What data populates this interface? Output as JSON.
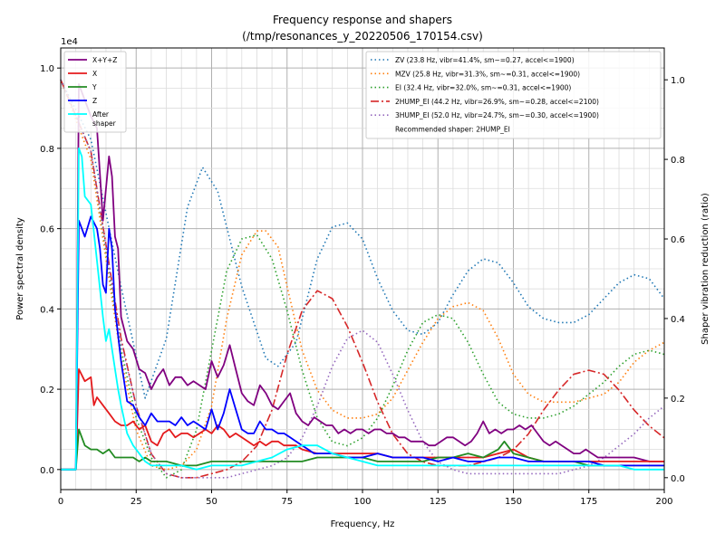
{
  "chart_data": {
    "type": "line",
    "title_line1": "Frequency response and shapers",
    "title_line2": "(/tmp/resonances_y_20220506_170154.csv)",
    "xlabel": "Frequency, Hz",
    "ylabel": "Power spectral density",
    "y2label": "Shaper vibration reduction (ratio)",
    "y_offset_text": "1e4",
    "xlim": [
      0,
      200
    ],
    "ylim": [
      -0.05,
      1.05
    ],
    "y2lim": [
      -0.03,
      1.08
    ],
    "x_ticks": [
      "0",
      "25",
      "50",
      "75",
      "100",
      "125",
      "150",
      "175",
      "200"
    ],
    "x_tick_values": [
      0,
      25,
      50,
      75,
      100,
      125,
      150,
      175,
      200
    ],
    "y_ticks": [
      "0.0",
      "0.2",
      "0.4",
      "0.6",
      "0.8",
      "1.0"
    ],
    "y_tick_values": [
      0,
      0.2,
      0.4,
      0.6,
      0.8,
      1.0
    ],
    "y2_ticks": [
      "0.0",
      "0.2",
      "0.4",
      "0.6",
      "0.8",
      "1.0"
    ],
    "y2_tick_values": [
      0,
      0.2,
      0.4,
      0.6,
      0.8,
      1.0
    ],
    "grid": true,
    "psd_legend_position": "upper-left",
    "shaper_legend_position": "upper-right",
    "recommended_text": "Recommended shaper: 2HUMP_EI",
    "psd_series": [
      {
        "name": "X+Y+Z",
        "color": "#800080",
        "dash": "solid",
        "x": [
          0,
          5,
          6,
          8,
          10,
          12,
          14,
          16,
          17,
          18,
          19,
          20,
          22,
          24,
          26,
          28,
          30,
          32,
          34,
          36,
          38,
          40,
          42,
          44,
          46,
          48,
          50,
          52,
          54,
          56,
          58,
          60,
          62,
          64,
          66,
          68,
          70,
          72,
          74,
          76,
          78,
          80,
          82,
          84,
          86,
          88,
          90,
          92,
          94,
          96,
          98,
          100,
          102,
          104,
          106,
          108,
          110,
          112,
          114,
          116,
          118,
          120,
          122,
          124,
          126,
          128,
          130,
          132,
          134,
          136,
          138,
          140,
          142,
          144,
          146,
          148,
          150,
          152,
          154,
          156,
          158,
          160,
          162,
          164,
          166,
          168,
          170,
          172,
          174,
          176,
          178,
          180,
          185,
          190,
          195,
          200
        ],
        "y": [
          0,
          0,
          0.96,
          0.92,
          0.88,
          0.85,
          0.62,
          0.78,
          0.73,
          0.58,
          0.55,
          0.38,
          0.32,
          0.3,
          0.25,
          0.24,
          0.2,
          0.23,
          0.25,
          0.21,
          0.23,
          0.23,
          0.21,
          0.22,
          0.21,
          0.2,
          0.27,
          0.23,
          0.26,
          0.31,
          0.25,
          0.19,
          0.17,
          0.16,
          0.21,
          0.19,
          0.16,
          0.15,
          0.17,
          0.19,
          0.14,
          0.12,
          0.11,
          0.13,
          0.12,
          0.11,
          0.11,
          0.09,
          0.1,
          0.09,
          0.1,
          0.1,
          0.09,
          0.1,
          0.1,
          0.09,
          0.09,
          0.08,
          0.08,
          0.07,
          0.07,
          0.07,
          0.06,
          0.06,
          0.07,
          0.08,
          0.08,
          0.07,
          0.06,
          0.07,
          0.09,
          0.12,
          0.09,
          0.1,
          0.09,
          0.1,
          0.1,
          0.11,
          0.1,
          0.11,
          0.09,
          0.07,
          0.06,
          0.07,
          0.06,
          0.05,
          0.04,
          0.04,
          0.05,
          0.04,
          0.03,
          0.03,
          0.03,
          0.03,
          0.02,
          0.02
        ]
      },
      {
        "name": "X",
        "color": "#e41a1c",
        "dash": "solid",
        "x": [
          0,
          5,
          6,
          8,
          10,
          11,
          12,
          14,
          16,
          18,
          20,
          22,
          24,
          26,
          28,
          30,
          32,
          34,
          36,
          38,
          40,
          42,
          44,
          46,
          48,
          50,
          52,
          54,
          56,
          58,
          60,
          62,
          64,
          66,
          68,
          70,
          72,
          74,
          76,
          78,
          80,
          85,
          90,
          95,
          100,
          105,
          110,
          115,
          120,
          125,
          130,
          135,
          140,
          145,
          150,
          155,
          160,
          165,
          170,
          175,
          180,
          185,
          190,
          195,
          200
        ],
        "y": [
          0,
          0,
          0.25,
          0.22,
          0.23,
          0.16,
          0.18,
          0.16,
          0.14,
          0.12,
          0.11,
          0.11,
          0.12,
          0.1,
          0.11,
          0.07,
          0.06,
          0.09,
          0.1,
          0.08,
          0.09,
          0.09,
          0.08,
          0.09,
          0.1,
          0.09,
          0.11,
          0.1,
          0.08,
          0.09,
          0.08,
          0.07,
          0.06,
          0.07,
          0.06,
          0.07,
          0.07,
          0.06,
          0.06,
          0.06,
          0.05,
          0.04,
          0.04,
          0.04,
          0.04,
          0.04,
          0.03,
          0.03,
          0.03,
          0.03,
          0.03,
          0.03,
          0.03,
          0.04,
          0.05,
          0.03,
          0.02,
          0.02,
          0.02,
          0.02,
          0.02,
          0.02,
          0.02,
          0.02,
          0.02
        ]
      },
      {
        "name": "Y",
        "color": "#228b22",
        "dash": "solid",
        "x": [
          0,
          5,
          6,
          8,
          10,
          12,
          14,
          16,
          18,
          20,
          22,
          24,
          26,
          28,
          30,
          35,
          40,
          45,
          50,
          55,
          60,
          65,
          70,
          75,
          80,
          85,
          90,
          95,
          100,
          105,
          110,
          115,
          120,
          125,
          130,
          135,
          140,
          145,
          147,
          150,
          155,
          160,
          165,
          170,
          175,
          180,
          185,
          190,
          195,
          200
        ],
        "y": [
          0,
          0,
          0.1,
          0.06,
          0.05,
          0.05,
          0.04,
          0.05,
          0.03,
          0.03,
          0.03,
          0.03,
          0.02,
          0.03,
          0.02,
          0.02,
          0.01,
          0.01,
          0.02,
          0.02,
          0.02,
          0.02,
          0.02,
          0.02,
          0.02,
          0.03,
          0.03,
          0.03,
          0.03,
          0.02,
          0.02,
          0.02,
          0.02,
          0.03,
          0.03,
          0.04,
          0.03,
          0.05,
          0.07,
          0.04,
          0.03,
          0.02,
          0.02,
          0.02,
          0.01,
          0.01,
          0.01,
          0.01,
          0.01,
          0.01
        ]
      },
      {
        "name": "Z",
        "color": "#0000ff",
        "dash": "solid",
        "x": [
          0,
          5,
          6,
          7,
          8,
          10,
          12,
          13,
          14,
          15,
          16,
          17,
          18,
          20,
          22,
          24,
          26,
          28,
          30,
          32,
          34,
          36,
          38,
          40,
          42,
          44,
          46,
          48,
          50,
          52,
          54,
          56,
          58,
          60,
          62,
          64,
          66,
          68,
          70,
          72,
          74,
          76,
          78,
          80,
          82,
          84,
          86,
          88,
          90,
          95,
          100,
          105,
          110,
          115,
          120,
          125,
          130,
          135,
          140,
          145,
          150,
          155,
          160,
          165,
          170,
          175,
          180,
          185,
          190,
          195,
          200
        ],
        "y": [
          0,
          0,
          0.62,
          0.6,
          0.58,
          0.63,
          0.6,
          0.55,
          0.46,
          0.44,
          0.6,
          0.55,
          0.4,
          0.27,
          0.17,
          0.16,
          0.13,
          0.11,
          0.14,
          0.12,
          0.12,
          0.12,
          0.11,
          0.13,
          0.11,
          0.12,
          0.11,
          0.1,
          0.15,
          0.1,
          0.14,
          0.2,
          0.15,
          0.1,
          0.09,
          0.09,
          0.12,
          0.1,
          0.1,
          0.09,
          0.09,
          0.08,
          0.07,
          0.06,
          0.05,
          0.04,
          0.04,
          0.04,
          0.04,
          0.03,
          0.03,
          0.04,
          0.03,
          0.03,
          0.03,
          0.02,
          0.03,
          0.02,
          0.02,
          0.03,
          0.03,
          0.02,
          0.02,
          0.02,
          0.02,
          0.02,
          0.01,
          0.01,
          0.01,
          0.01,
          0.01
        ]
      },
      {
        "name": "After\nshaper",
        "color": "#00ffff",
        "dash": "solid",
        "x": [
          0,
          5,
          6,
          7,
          8,
          10,
          12,
          13,
          14,
          15,
          16,
          17,
          18,
          19,
          20,
          22,
          24,
          26,
          28,
          30,
          35,
          40,
          45,
          50,
          55,
          60,
          65,
          70,
          75,
          80,
          85,
          90,
          95,
          100,
          105,
          110,
          115,
          120,
          125,
          130,
          135,
          140,
          145,
          150,
          155,
          160,
          165,
          170,
          175,
          180,
          185,
          190,
          195,
          200
        ],
        "y": [
          0,
          0,
          0.8,
          0.78,
          0.68,
          0.66,
          0.52,
          0.45,
          0.38,
          0.32,
          0.35,
          0.3,
          0.25,
          0.2,
          0.16,
          0.09,
          0.06,
          0.04,
          0.02,
          0.01,
          0.01,
          0.01,
          0.0,
          0.01,
          0.01,
          0.01,
          0.02,
          0.03,
          0.05,
          0.06,
          0.06,
          0.04,
          0.03,
          0.02,
          0.01,
          0.01,
          0.01,
          0.01,
          0.01,
          0.01,
          0.01,
          0.01,
          0.01,
          0.01,
          0.01,
          0.01,
          0.01,
          0.01,
          0.01,
          0.01,
          0.01,
          0.0,
          0.0,
          0.0
        ]
      }
    ],
    "shaper_series": [
      {
        "name": "ZV (23.8 Hz, vibr=41.4%, sm~=0.27, accel<=1900)",
        "color": "#1f77b4",
        "dash": "dotted",
        "x": [
          0,
          10,
          20,
          28,
          35,
          42,
          47,
          52,
          60,
          68,
          72,
          78,
          85,
          90,
          95,
          100,
          105,
          110,
          115,
          120,
          125,
          130,
          135,
          140,
          145,
          150,
          155,
          160,
          165,
          170,
          175,
          180,
          185,
          190,
          195,
          200
        ],
        "y": [
          1.0,
          0.85,
          0.48,
          0.2,
          0.35,
          0.68,
          0.78,
          0.72,
          0.48,
          0.3,
          0.28,
          0.34,
          0.55,
          0.63,
          0.64,
          0.6,
          0.5,
          0.42,
          0.37,
          0.36,
          0.39,
          0.46,
          0.52,
          0.55,
          0.54,
          0.49,
          0.43,
          0.4,
          0.39,
          0.39,
          0.41,
          0.45,
          0.49,
          0.51,
          0.5,
          0.45
        ]
      },
      {
        "name": "MZV (25.8 Hz, vibr=31.3%, sm~=0.31, accel<=1900)",
        "color": "#ff7f0e",
        "dash": "dotted",
        "x": [
          0,
          10,
          20,
          25,
          30,
          35,
          40,
          45,
          50,
          55,
          60,
          65,
          68,
          72,
          75,
          80,
          85,
          90,
          95,
          100,
          105,
          110,
          115,
          120,
          125,
          130,
          135,
          140,
          145,
          150,
          155,
          160,
          165,
          170,
          175,
          180,
          185,
          190,
          195,
          200
        ],
        "y": [
          1.0,
          0.8,
          0.3,
          0.12,
          0.03,
          0.02,
          0.03,
          0.07,
          0.18,
          0.4,
          0.56,
          0.62,
          0.62,
          0.58,
          0.48,
          0.32,
          0.22,
          0.17,
          0.15,
          0.15,
          0.16,
          0.2,
          0.27,
          0.34,
          0.4,
          0.43,
          0.44,
          0.42,
          0.35,
          0.26,
          0.21,
          0.19,
          0.19,
          0.19,
          0.2,
          0.21,
          0.24,
          0.29,
          0.32,
          0.34
        ]
      },
      {
        "name": "EI (32.4 Hz, vibr=32.0%, sm~=0.31, accel<=1900)",
        "color": "#2ca02c",
        "dash": "dotted",
        "x": [
          0,
          10,
          20,
          25,
          30,
          35,
          40,
          45,
          50,
          55,
          60,
          65,
          70,
          75,
          80,
          85,
          90,
          95,
          100,
          105,
          110,
          115,
          120,
          125,
          130,
          135,
          140,
          145,
          150,
          155,
          160,
          165,
          170,
          175,
          180,
          185,
          190,
          195,
          200
        ],
        "y": [
          1.0,
          0.82,
          0.32,
          0.15,
          0.05,
          0.0,
          0.02,
          0.12,
          0.32,
          0.52,
          0.6,
          0.61,
          0.55,
          0.42,
          0.27,
          0.15,
          0.09,
          0.08,
          0.1,
          0.15,
          0.23,
          0.32,
          0.39,
          0.41,
          0.4,
          0.34,
          0.26,
          0.19,
          0.16,
          0.15,
          0.15,
          0.16,
          0.18,
          0.21,
          0.24,
          0.28,
          0.31,
          0.32,
          0.31
        ]
      },
      {
        "name": "2HUMP_EI (44.2 Hz, vibr=26.9%, sm~=0.28, accel<=2100)",
        "color": "#d62728",
        "dash": "dashdot",
        "x": [
          0,
          10,
          20,
          25,
          30,
          35,
          40,
          45,
          50,
          55,
          60,
          65,
          70,
          75,
          80,
          85,
          90,
          95,
          100,
          105,
          110,
          115,
          120,
          125,
          130,
          135,
          140,
          145,
          150,
          155,
          160,
          165,
          170,
          175,
          180,
          185,
          190,
          195,
          200
        ],
        "y": [
          1.0,
          0.82,
          0.35,
          0.18,
          0.06,
          0.01,
          0.0,
          0.0,
          0.01,
          0.02,
          0.04,
          0.08,
          0.17,
          0.31,
          0.42,
          0.47,
          0.45,
          0.38,
          0.29,
          0.19,
          0.11,
          0.06,
          0.04,
          0.03,
          0.03,
          0.03,
          0.04,
          0.05,
          0.07,
          0.11,
          0.17,
          0.22,
          0.26,
          0.27,
          0.26,
          0.22,
          0.17,
          0.13,
          0.1
        ]
      },
      {
        "name": "3HUMP_EI (52.0 Hz, vibr=24.7%, sm~=0.30, accel<=1900)",
        "color": "#9467bd",
        "dash": "dotted",
        "x": [
          0,
          10,
          20,
          25,
          30,
          35,
          40,
          45,
          50,
          55,
          60,
          65,
          70,
          75,
          80,
          85,
          90,
          95,
          100,
          105,
          110,
          115,
          120,
          125,
          130,
          135,
          140,
          145,
          150,
          155,
          160,
          165,
          170,
          175,
          180,
          185,
          190,
          195,
          200
        ],
        "y": [
          1.0,
          0.82,
          0.34,
          0.18,
          0.06,
          0.01,
          0.0,
          0.0,
          0.0,
          0.0,
          0.01,
          0.02,
          0.03,
          0.05,
          0.1,
          0.18,
          0.28,
          0.35,
          0.37,
          0.34,
          0.26,
          0.17,
          0.09,
          0.04,
          0.02,
          0.01,
          0.01,
          0.01,
          0.01,
          0.01,
          0.01,
          0.01,
          0.02,
          0.03,
          0.05,
          0.08,
          0.11,
          0.15,
          0.18
        ]
      }
    ]
  }
}
